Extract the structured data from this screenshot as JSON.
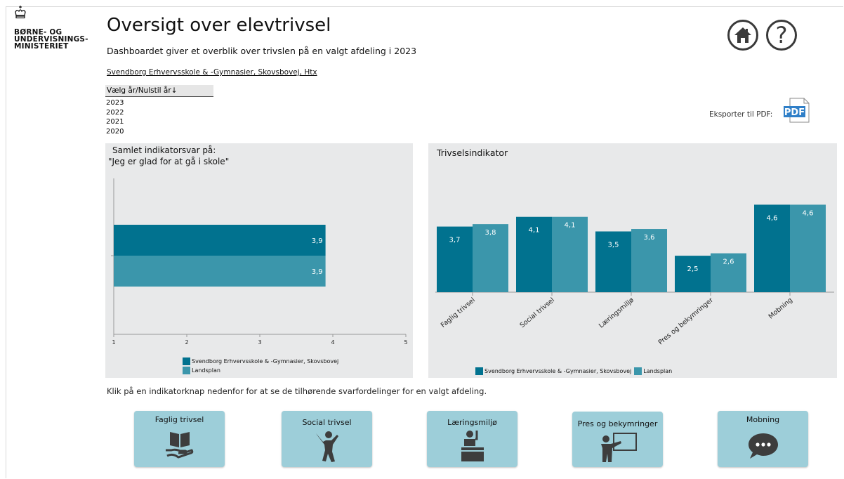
{
  "header": {
    "ministry_logo_text": [
      "BØRNE- OG",
      "UNDERVISNINGS-",
      "MINISTERIET"
    ],
    "title": "Oversigt over elevtrivsel",
    "subtitle": "Dashboardet giver et overblik over trivslen på en valgt afdeling i 2023",
    "school": "Svendborg Erhvervsskole & -Gymnasier, Skovsbovej, Htx"
  },
  "year_filter": {
    "label": "Vælg år/Nulstil år",
    "years": [
      "2023",
      "2022",
      "2021",
      "2020"
    ]
  },
  "export": {
    "label": "Eksporter til PDF:",
    "icon": "pdf-icon"
  },
  "nav": {
    "home_icon": "home-icon",
    "help_icon": "help-icon"
  },
  "left_panel": {
    "title_line1": "Samlet indikatorsvar på:",
    "title_line2": "\"Jeg er glad for at gå i skole\""
  },
  "right_panel": {
    "title": "Trivselsindikator"
  },
  "instructions": "Klik på en indikatorknap nedenfor for at se de tilhørende svarfordelinger for en valgt afdeling.",
  "buttons": [
    {
      "label": "Faglig trivsel",
      "icon": "book-hand-icon"
    },
    {
      "label": "Social trivsel",
      "icon": "person-jumping-icon"
    },
    {
      "label": "Læringsmiljø",
      "icon": "student-desk-icon"
    },
    {
      "label": "Pres og bekymringer",
      "icon": "teacher-board-icon"
    },
    {
      "label": "Mobning",
      "icon": "speech-bubble-icon"
    }
  ],
  "colors": {
    "school": "#01728f",
    "national": "#3b96ab",
    "panel": "#e8e9ea",
    "button": "#9dced9"
  },
  "chart_data": [
    {
      "type": "bar",
      "orientation": "horizontal",
      "title": "Samlet indikatorsvar på: \"Jeg er glad for at gå i skole\"",
      "categories": [
        ""
      ],
      "series": [
        {
          "name": "Svendborg Erhvervsskole & -Gymnasier, Skovsbovej",
          "values": [
            3.9
          ],
          "labels": [
            "3,9"
          ]
        },
        {
          "name": "Landsplan",
          "values": [
            3.9
          ],
          "labels": [
            "3,9"
          ]
        }
      ],
      "xlim": [
        1,
        5
      ],
      "xticks": [
        "1",
        "2",
        "3",
        "4",
        "5"
      ],
      "legend": "bottom"
    },
    {
      "type": "bar",
      "title": "Trivselsindikator",
      "categories": [
        "Faglig trivsel",
        "Social trivsel",
        "Læringsmiljø",
        "Pres og bekymringer",
        "Mobning"
      ],
      "series": [
        {
          "name": "Svendborg Erhvervsskole & -Gymnasier, Skovsbovej",
          "values": [
            3.7,
            4.1,
            3.5,
            2.5,
            4.6
          ],
          "labels": [
            "3,7",
            "4,1",
            "3,5",
            "2,5",
            "4,6"
          ]
        },
        {
          "name": "Landsplan",
          "values": [
            3.8,
            4.1,
            3.6,
            2.6,
            4.6
          ],
          "labels": [
            "3,8",
            "4,1",
            "3,6",
            "2,6",
            "4,6"
          ]
        }
      ],
      "ylim": [
        1,
        5
      ],
      "legend": "bottom"
    }
  ]
}
